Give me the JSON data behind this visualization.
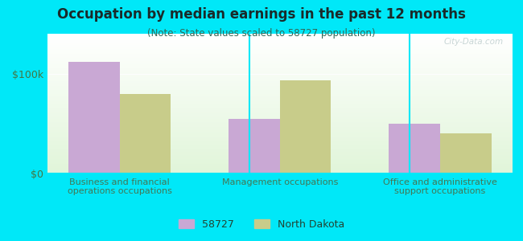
{
  "title": "Occupation by median earnings in the past 12 months",
  "subtitle": "(Note: State values scaled to 58727 population)",
  "categories": [
    "Business and financial\noperations occupations",
    "Management occupations",
    "Office and administrative\nsupport occupations"
  ],
  "series_58727": [
    112000,
    55000,
    50000
  ],
  "series_nd": [
    80000,
    93000,
    40000
  ],
  "color_58727": "#c9a8d4",
  "color_nd": "#c8cc8a",
  "ylabel_ticks": [
    0,
    100000
  ],
  "ylabel_labels": [
    "$0",
    "$100k"
  ],
  "ylim": [
    0,
    140000
  ],
  "background_outer": "#00e8f8",
  "legend_label_58727": "58727",
  "legend_label_nd": "North Dakota",
  "bar_width": 0.32,
  "watermark": "City-Data.com"
}
